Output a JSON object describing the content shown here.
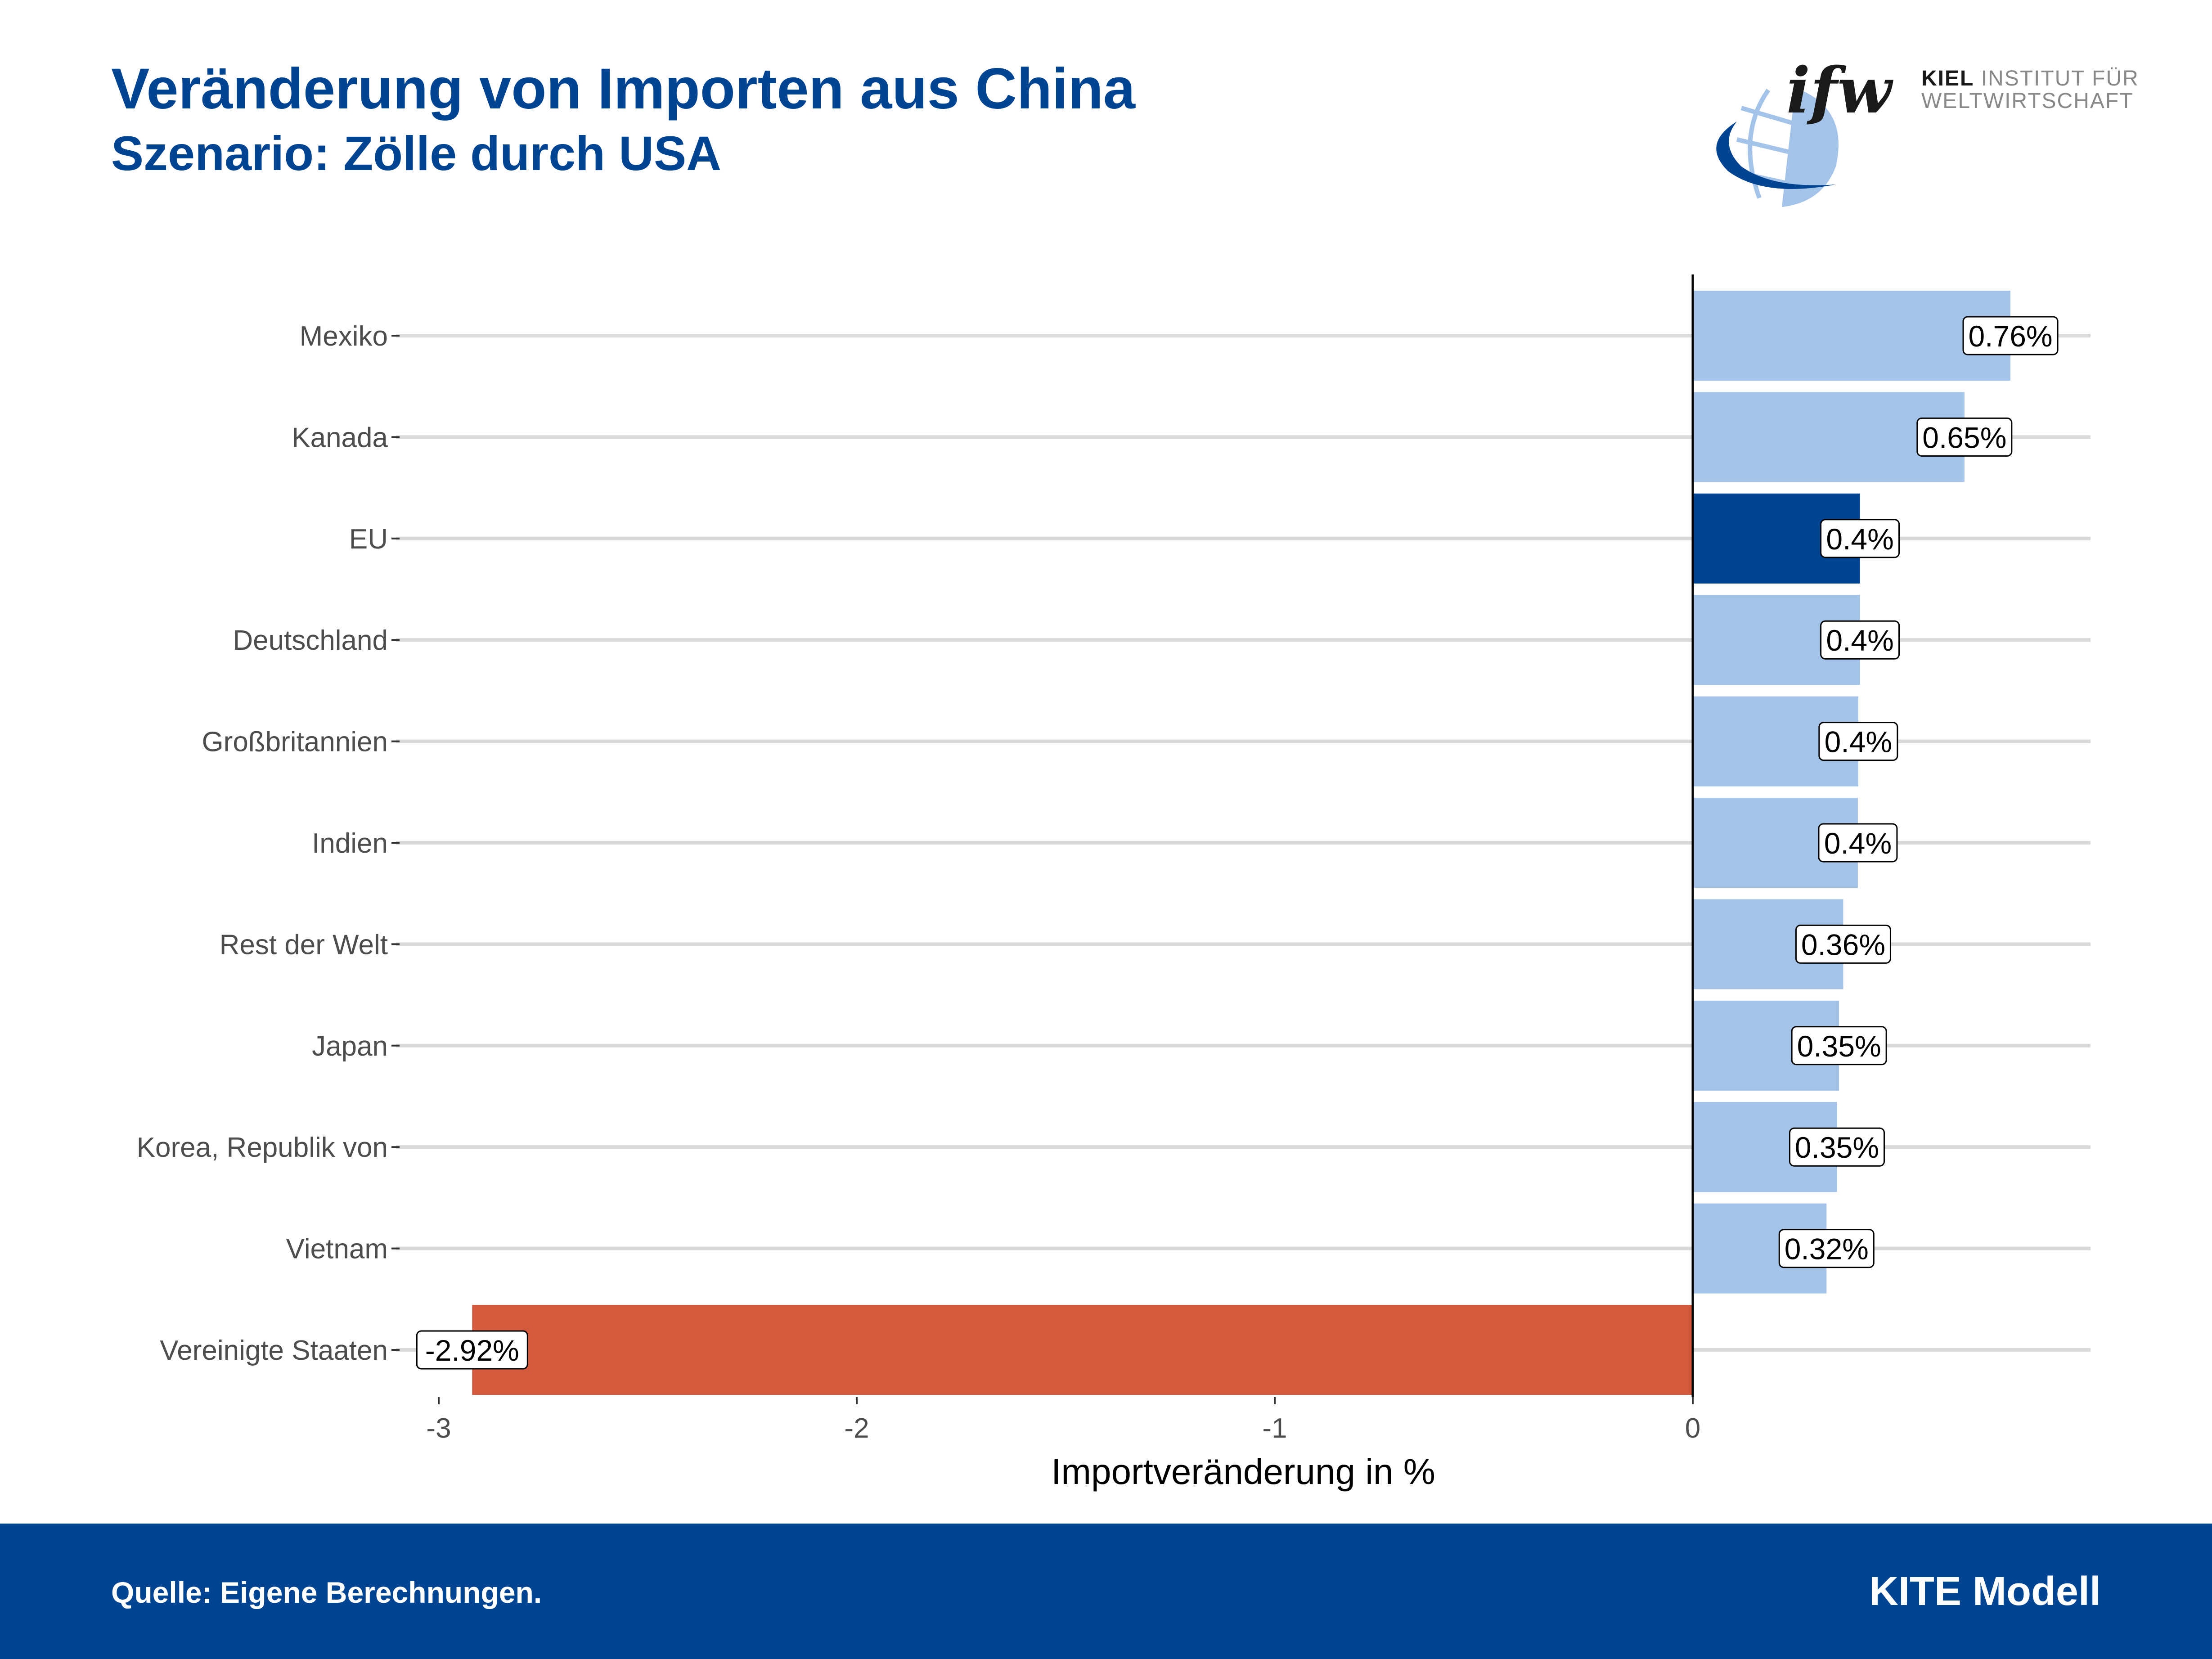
{
  "header": {
    "title": "Veränderung von Importen aus China",
    "subtitle": "Szenario: Zölle durch USA"
  },
  "logo": {
    "mark": "ifw",
    "name_bold": "KIEL",
    "name_line1": "INSTITUT FÜR",
    "name_line2": "WELTWIRTSCHAFT",
    "icon": "globe-icon"
  },
  "footer": {
    "source": "Quelle: Eigene Berechnungen.",
    "model": "KITE Modell"
  },
  "colors": {
    "brand_blue": "#014492",
    "light_blue": "#A3C4E8",
    "highlight": "#014492",
    "negative": "#D35A3C",
    "grid": "#D9D9D9"
  },
  "chart_data": {
    "type": "bar",
    "orientation": "horizontal",
    "title": "Veränderung von Importen aus China",
    "subtitle": "Szenario: Zölle durch USA",
    "xlabel": "Importveränderung in %",
    "ylabel": "",
    "xlim": [
      -3.05,
      0.95
    ],
    "xticks": [
      -3,
      -2,
      -1,
      0
    ],
    "xtick_labels": [
      "-3",
      "-2",
      "-1",
      "0"
    ],
    "grid": "horizontal major lines",
    "categories": [
      "Mexiko",
      "Kanada",
      "EU",
      "Deutschland",
      "Großbritannien",
      "Indien",
      "Rest der Welt",
      "Japan",
      "Korea, Republik von",
      "Vietnam",
      "Vereinigte Staaten"
    ],
    "values": [
      0.76,
      0.65,
      0.4,
      0.4,
      0.396,
      0.395,
      0.36,
      0.35,
      0.345,
      0.32,
      -2.92
    ],
    "labels": [
      "0.76%",
      "0.65%",
      "0.4%",
      "0.4%",
      "0.4%",
      "0.4%",
      "0.36%",
      "0.35%",
      "0.35%",
      "0.32%",
      "-2.92%"
    ],
    "bar_colors": [
      "light",
      "light",
      "highlight",
      "light",
      "light",
      "light",
      "light",
      "light",
      "light",
      "light",
      "negative"
    ]
  }
}
